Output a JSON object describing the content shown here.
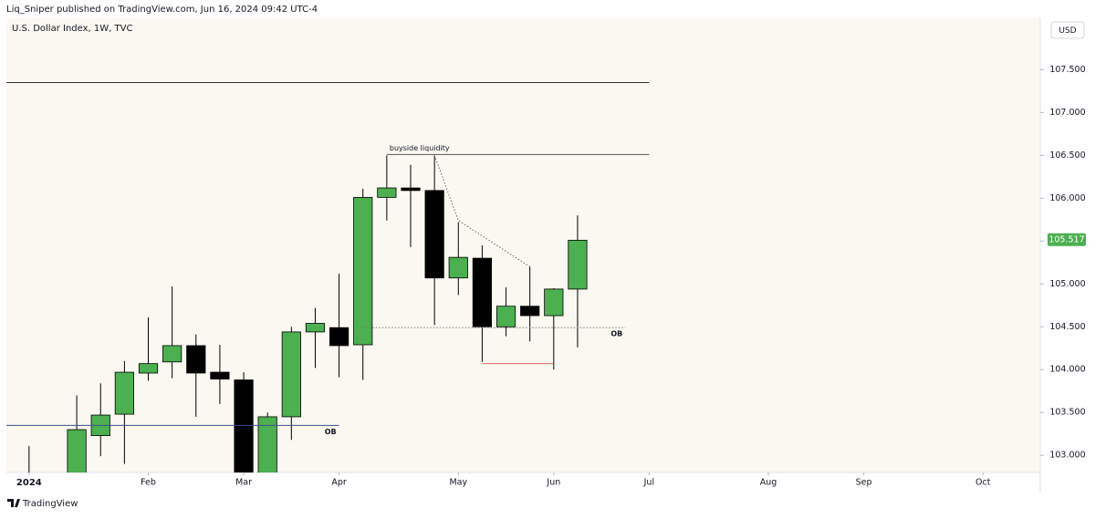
{
  "chart_data": {
    "type": "candlestick",
    "publisher_line": "Liq_Sniper published on TradingView.com, Jun 16, 2024 09:42 UTC-4",
    "title": "U.S. Dollar Index, 1W, TVC",
    "currency": "USD",
    "footer": "TradingView",
    "x": [
      0,
      2,
      3,
      4,
      5,
      6,
      7,
      8,
      9,
      10,
      11,
      12,
      13,
      14,
      15,
      16,
      17,
      18,
      19,
      20,
      21,
      22,
      23
    ],
    "open": [
      102.3,
      102.6,
      103.23,
      103.48,
      103.96,
      104.09,
      104.28,
      103.97,
      103.88,
      102.7,
      103.45,
      104.44,
      104.49,
      104.29,
      106.01,
      106.12,
      106.09,
      105.07,
      105.3,
      104.5,
      104.74,
      104.63,
      104.94
    ],
    "high": [
      103.11,
      103.7,
      103.84,
      104.1,
      104.61,
      104.97,
      104.41,
      104.29,
      103.97,
      103.5,
      104.5,
      104.72,
      105.12,
      106.11,
      106.5,
      106.39,
      106.5,
      105.72,
      105.45,
      104.96,
      105.2,
      104.95,
      105.8
    ],
    "low": [
      102.2,
      102.5,
      102.99,
      102.9,
      103.87,
      103.9,
      103.45,
      103.6,
      102.65,
      102.65,
      103.18,
      104.02,
      103.91,
      103.88,
      105.74,
      105.43,
      104.52,
      104.87,
      104.09,
      104.39,
      104.33,
      104.0,
      104.26
    ],
    "close": [
      102.6,
      103.3,
      103.47,
      103.97,
      104.07,
      104.28,
      103.96,
      103.89,
      102.72,
      103.45,
      104.44,
      104.54,
      104.28,
      106.01,
      106.12,
      106.09,
      105.07,
      105.31,
      104.5,
      104.74,
      104.63,
      104.94,
      105.51
    ],
    "up_color": "#4caf50",
    "down_color": "#000000",
    "last_price": 105.517,
    "xlim": [
      -0.95,
      42.4
    ],
    "xticks": [
      {
        "value": 0,
        "label": "2024"
      },
      {
        "value": 5,
        "label": "Feb"
      },
      {
        "value": 9,
        "label": "Mar"
      },
      {
        "value": 13,
        "label": "Apr"
      },
      {
        "value": 18,
        "label": "May"
      },
      {
        "value": 22,
        "label": "Jun"
      },
      {
        "value": 26,
        "label": "Jul"
      },
      {
        "value": 31,
        "label": "Aug"
      },
      {
        "value": 35,
        "label": "Sep"
      },
      {
        "value": 40,
        "label": "Oct"
      }
    ],
    "ylim": [
      102.8,
      108.1
    ],
    "yticks": [
      {
        "value": 103,
        "label": "103.000"
      },
      {
        "value": 103.5,
        "label": "103.500"
      },
      {
        "value": 104,
        "label": "104.000"
      },
      {
        "value": 104.5,
        "label": "104.500"
      },
      {
        "value": 105,
        "label": "105.000"
      },
      {
        "value": 105.5,
        "label": "105.500"
      },
      {
        "value": 106,
        "label": "106.000"
      },
      {
        "value": 106.5,
        "label": "106.500"
      },
      {
        "value": 107,
        "label": "107.000"
      },
      {
        "value": 107.5,
        "label": "107.500"
      }
    ],
    "drawings": [
      {
        "x": [
          -0.95,
          26
        ],
        "y": [
          107.35,
          107.35
        ],
        "color": "#333333",
        "style": "solid"
      },
      {
        "x": [
          15,
          26
        ],
        "y": [
          106.51,
          106.51
        ],
        "color": "#555555",
        "style": "solid",
        "label": "buyside liquidity",
        "label_position": "above-start"
      },
      {
        "x": [
          17,
          18,
          21
        ],
        "y": [
          106.5,
          105.74,
          105.2
        ],
        "color": "#666666",
        "style": "dotted"
      },
      {
        "x": [
          14,
          25
        ],
        "y": [
          104.49,
          104.49
        ],
        "color": "#777777",
        "style": "dotted",
        "label": "OB",
        "label_position": "below-end"
      },
      {
        "x": [
          -0.95,
          13
        ],
        "y": [
          103.35,
          103.35
        ],
        "color": "#3f4f8f",
        "style": "solid",
        "label": "OB",
        "label_position": "below-end"
      },
      {
        "x": [
          19,
          22
        ],
        "y": [
          104.07,
          104.07
        ],
        "color": "#e06666",
        "style": "solid"
      }
    ]
  }
}
